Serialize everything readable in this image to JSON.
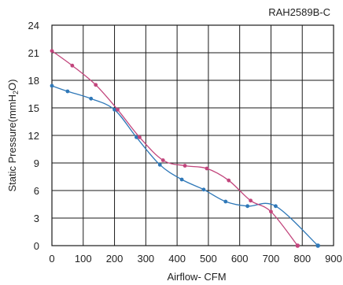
{
  "chart_data": {
    "type": "line",
    "title": "RAH2589B-C",
    "xlabel": "Airflow- CFM",
    "ylabel_main": "Static Pressure(mmH",
    "ylabel_sub": "2",
    "ylabel_end": "O)",
    "xlim": [
      0,
      900
    ],
    "ylim": [
      0,
      24
    ],
    "xticks": [
      "0",
      "100",
      "200",
      "300",
      "400",
      "500",
      "600",
      "700",
      "800",
      "900"
    ],
    "yticks": [
      "0",
      "3",
      "6",
      "9",
      "12",
      "15",
      "18",
      "21",
      "24"
    ],
    "grid": true,
    "colors": {
      "grid": "#1a1a1a",
      "series_blue": "#2f78b8",
      "series_magenta": "#c2457c"
    },
    "series": [
      {
        "color": "#2f78b8",
        "x": [
          0,
          50,
          125,
          200,
          270,
          345,
          415,
          485,
          555,
          625,
          715,
          850
        ],
        "y": [
          17.4,
          16.8,
          16.0,
          14.8,
          11.8,
          8.8,
          7.2,
          6.1,
          4.8,
          4.3,
          4.3,
          0.0
        ]
      },
      {
        "color": "#c2457c",
        "x": [
          0,
          65,
          140,
          210,
          280,
          355,
          425,
          495,
          565,
          635,
          700,
          785
        ],
        "y": [
          21.2,
          19.6,
          17.5,
          14.8,
          11.8,
          9.3,
          8.7,
          8.4,
          7.1,
          4.9,
          3.7,
          0.0
        ]
      }
    ]
  }
}
